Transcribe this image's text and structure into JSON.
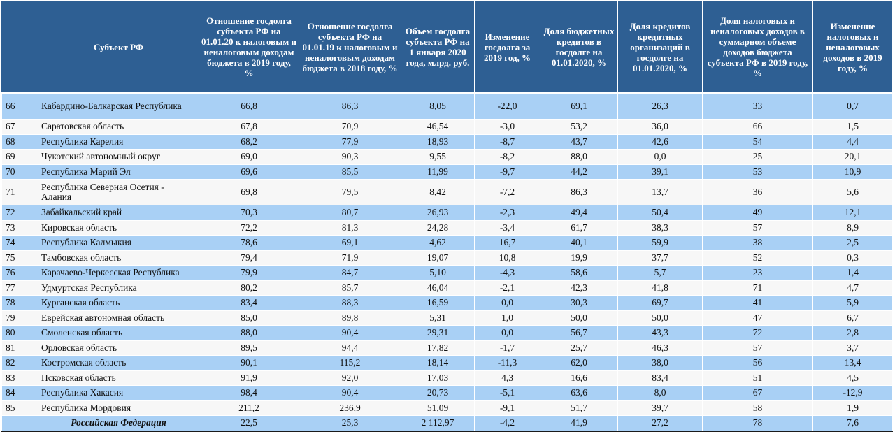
{
  "headers": [
    "",
    "Субъект РФ",
    "Отношение госдолга субъекта РФ на 01.01.20 к налоговым и неналоговым доходам бюджета в 2019 году, %",
    "Отношение госдолга субъекта РФ на 01.01.19 к налоговым и неналоговым доходам бюджета в 2018 году, %",
    "Объем госдолга субъекта РФ на 1 января 2020 года, млрд. руб.",
    "Изменение госдолга за 2019 год, %",
    "Доля бюджетных кредитов в госдолге на 01.01.2020, %",
    "Доля кредитов кредитных организаций в госдолге на 01.01.2020, %",
    "Доля налоговых и неналоговых доходов в суммарном объеме доходов бюджета субъекта РФ в 2019 году, %",
    "Изменение налоговых и неналоговых доходов в 2019 году, %"
  ],
  "rows": [
    {
      "num": "66",
      "name": "Кабардино-Балкарская Республика",
      "tall": true,
      "cells": [
        "66,8",
        "86,3",
        "8,05",
        "-22,0",
        "69,1",
        "26,3",
        "33",
        "0,7"
      ]
    },
    {
      "num": "67",
      "name": "Саратовская область",
      "cells": [
        "67,8",
        "70,9",
        "46,54",
        "-3,0",
        "53,2",
        "36,0",
        "66",
        "1,5"
      ]
    },
    {
      "num": "68",
      "name": "Республика Карелия",
      "cells": [
        "68,2",
        "77,9",
        "18,93",
        "-8,7",
        "43,7",
        "42,6",
        "54",
        "4,4"
      ]
    },
    {
      "num": "69",
      "name": "Чукотский автономный округ",
      "cells": [
        "69,0",
        "90,3",
        "9,55",
        "-8,2",
        "88,0",
        "0,0",
        "25",
        "20,1"
      ]
    },
    {
      "num": "70",
      "name": "Республика Марий Эл",
      "cells": [
        "69,6",
        "85,5",
        "11,99",
        "-9,7",
        "44,2",
        "39,1",
        "53",
        "10,9"
      ]
    },
    {
      "num": "71",
      "name": "Республика Северная Осетия - Алания",
      "tall": true,
      "cells": [
        "69,8",
        "79,5",
        "8,42",
        "-7,2",
        "86,3",
        "13,7",
        "36",
        "5,6"
      ]
    },
    {
      "num": "72",
      "name": "Забайкальский край",
      "cells": [
        "70,3",
        "80,7",
        "26,93",
        "-2,3",
        "49,4",
        "50,4",
        "49",
        "12,1"
      ]
    },
    {
      "num": "73",
      "name": "Кировская область",
      "cells": [
        "72,2",
        "81,3",
        "24,28",
        "-3,4",
        "61,7",
        "38,3",
        "57",
        "8,9"
      ]
    },
    {
      "num": "74",
      "name": "Республика Калмыкия",
      "cells": [
        "78,6",
        "69,1",
        "4,62",
        "16,7",
        "40,1",
        "59,9",
        "38",
        "2,5"
      ]
    },
    {
      "num": "75",
      "name": "Тамбовская область",
      "cells": [
        "79,4",
        "71,9",
        "19,07",
        "10,8",
        "19,9",
        "37,7",
        "52",
        "0,3"
      ]
    },
    {
      "num": "76",
      "name": "Карачаево-Черкесская Республика",
      "cells": [
        "79,9",
        "84,7",
        "5,10",
        "-4,3",
        "58,6",
        "5,7",
        "23",
        "1,4"
      ]
    },
    {
      "num": "77",
      "name": "Удмуртская Республика",
      "cells": [
        "80,2",
        "85,7",
        "46,04",
        "-2,1",
        "42,3",
        "41,8",
        "71",
        "4,7"
      ]
    },
    {
      "num": "78",
      "name": "Курганская область",
      "cells": [
        "83,4",
        "88,3",
        "16,59",
        "0,0",
        "30,3",
        "69,7",
        "41",
        "5,9"
      ]
    },
    {
      "num": "79",
      "name": "Еврейская автономная область",
      "cells": [
        "85,0",
        "89,8",
        "5,31",
        "1,0",
        "50,0",
        "50,0",
        "47",
        "6,7"
      ]
    },
    {
      "num": "80",
      "name": "Смоленская область",
      "cells": [
        "88,0",
        "90,4",
        "29,31",
        "0,0",
        "56,7",
        "43,3",
        "72",
        "2,8"
      ]
    },
    {
      "num": "81",
      "name": "Орловская область",
      "cells": [
        "89,5",
        "94,4",
        "17,82",
        "-1,7",
        "25,7",
        "46,3",
        "57",
        "3,7"
      ]
    },
    {
      "num": "82",
      "name": "Костромская область",
      "cells": [
        "90,1",
        "115,2",
        "18,14",
        "-11,3",
        "62,0",
        "38,0",
        "56",
        "13,4"
      ]
    },
    {
      "num": "83",
      "name": "Псковская область",
      "cells": [
        "91,9",
        "92,0",
        "17,03",
        "4,3",
        "16,6",
        "83,4",
        "51",
        "4,5"
      ]
    },
    {
      "num": "84",
      "name": "Республика Хакасия",
      "cells": [
        "98,4",
        "90,4",
        "20,73",
        "-5,1",
        "63,6",
        "8,0",
        "67",
        "-12,9"
      ]
    },
    {
      "num": "85",
      "name": "Республика Мордовия",
      "cells": [
        "211,2",
        "236,9",
        "51,09",
        "-9,1",
        "51,7",
        "39,7",
        "58",
        "1,9"
      ]
    }
  ],
  "total": {
    "num": "",
    "name": "Российская Федерация",
    "cells": [
      "22,5",
      "25,3",
      "2 112,97",
      "-4,2",
      "41,9",
      "27,2",
      "78",
      "7,6"
    ]
  },
  "colors": {
    "header_bg": "#2e5f93",
    "row_blue": "#a9d0f5",
    "row_white": "#f7f7f7"
  }
}
